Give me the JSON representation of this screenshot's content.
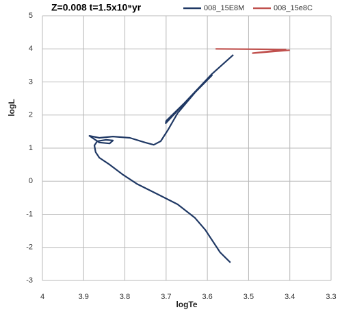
{
  "chart_data": {
    "type": "line",
    "title": "Z=0.008 t=1.5x10⁹yr",
    "x_label": "logTe",
    "y_label": "logL",
    "xlim": [
      4,
      3.3
    ],
    "ylim": [
      -3,
      5
    ],
    "xticks": [
      4,
      3.9,
      3.8,
      3.7,
      3.6,
      3.5,
      3.4,
      3.3
    ],
    "yticks": [
      -3,
      -2,
      -1,
      0,
      1,
      2,
      3,
      4,
      5
    ],
    "grid": true,
    "legend": "top",
    "series": [
      {
        "name": "008_15E8M",
        "color": "#1f3864",
        "x": [
          3.544,
          3.569,
          3.605,
          3.63,
          3.672,
          3.721,
          3.771,
          3.804,
          3.837,
          3.862,
          3.871,
          3.874,
          3.867,
          3.846,
          3.829,
          3.837,
          3.862,
          3.886,
          3.862,
          3.829,
          3.788,
          3.751,
          3.73,
          3.713,
          3.696,
          3.672,
          3.63,
          3.589,
          3.639,
          3.701,
          3.7,
          3.655,
          3.589,
          3.537
        ],
        "values": [
          -2.46,
          -2.15,
          -1.47,
          -1.11,
          -0.7,
          -0.39,
          -0.08,
          0.19,
          0.5,
          0.71,
          0.88,
          1.08,
          1.21,
          1.25,
          1.23,
          1.14,
          1.17,
          1.37,
          1.31,
          1.35,
          1.31,
          1.17,
          1.1,
          1.21,
          1.54,
          2.06,
          2.68,
          3.2,
          2.58,
          1.75,
          1.82,
          2.37,
          3.24,
          3.82
        ]
      },
      {
        "name": "008_15e8C",
        "color": "#c0504d",
        "x": [
          3.58,
          3.41,
          3.49,
          3.4
        ],
        "values": [
          4.0,
          3.98,
          3.87,
          3.96
        ]
      }
    ]
  }
}
